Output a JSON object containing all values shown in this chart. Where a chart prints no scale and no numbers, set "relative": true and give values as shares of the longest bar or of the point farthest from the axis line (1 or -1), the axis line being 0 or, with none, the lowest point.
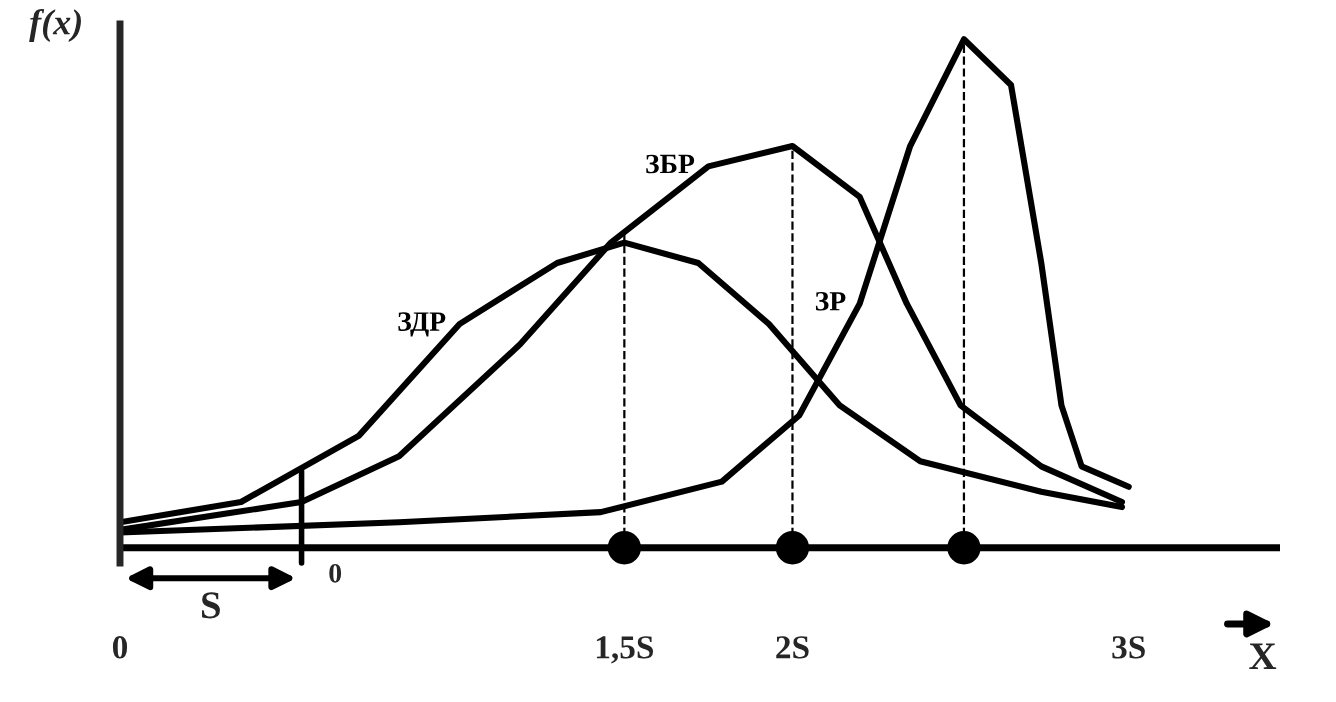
{
  "chart_data": {
    "type": "line",
    "relative": true,
    "xlabel": "X",
    "ylabel": "f(x)",
    "xlim": [
      0,
      3.45
    ],
    "xticks": [
      0,
      {
        "value": 1.5,
        "label": "1,5S"
      },
      {
        "value": 2,
        "label": "2S"
      },
      {
        "value": 2.51,
        "label": null
      },
      {
        "value": 3,
        "label": "3S"
      }
    ],
    "grid": false,
    "legend": false,
    "marker": "none",
    "line_style": "solid",
    "series": [
      {
        "name": "ЗДР",
        "color": "#000000",
        "x": [
          0,
          0.36,
          0.71,
          1.01,
          1.3,
          1.5,
          1.72,
          1.93,
          2.14,
          2.38,
          2.74,
          2.98
        ],
        "values": [
          0.05,
          0.09,
          0.22,
          0.44,
          0.56,
          0.6,
          0.56,
          0.44,
          0.28,
          0.17,
          0.11,
          0.08
        ]
      },
      {
        "name": "ЗБР",
        "color": "#000000",
        "x": [
          0,
          0.54,
          0.83,
          1.19,
          1.46,
          1.75,
          2,
          2.2,
          2.34,
          2.5,
          2.74,
          2.98
        ],
        "values": [
          0.035,
          0.09,
          0.18,
          0.4,
          0.6,
          0.75,
          0.79,
          0.69,
          0.48,
          0.28,
          0.16,
          0.09
        ]
      },
      {
        "name": "ЗР",
        "color": "#000000",
        "x": [
          0,
          0.83,
          1.43,
          1.79,
          2.02,
          2.2,
          2.35,
          2.51,
          2.65,
          2.74,
          2.8,
          2.86,
          3.0
        ],
        "values": [
          0.03,
          0.05,
          0.07,
          0.13,
          0.26,
          0.48,
          0.79,
          1.0,
          0.91,
          0.56,
          0.28,
          0.16,
          0.12
        ]
      }
    ],
    "ref_lines": [
      {
        "axis": "x",
        "value": 1.5,
        "line_style": "dashed"
      },
      {
        "axis": "x",
        "value": 2,
        "line_style": "dashed"
      },
      {
        "axis": "x",
        "value": 2.51,
        "line_style": "dashed"
      }
    ],
    "annotations": [
      "S",
      "0"
    ]
  }
}
